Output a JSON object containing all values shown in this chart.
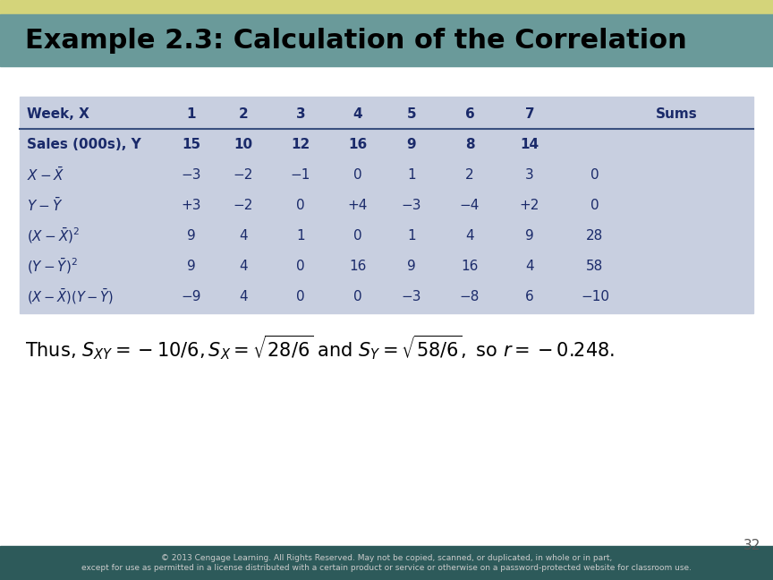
{
  "title": "Example 2.3: Calculation of the Correlation",
  "title_bg": "#6a9a9a",
  "title_stripe_bg": "#d4d47a",
  "title_color": "#000000",
  "title_fontsize": 22,
  "table_bg": "#c8cfe0",
  "table_border_color": "#3a5080",
  "main_bg": "#ffffff",
  "footer_bg": "#2d5a5a",
  "footer_text": "© 2013 Cengage Learning. All Rights Reserved. May not be copied, scanned, or duplicated, in whole or in part,\nexcept for use as permitted in a license distributed with a certain product or service or otherwise on a password-protected website for classroom use.",
  "page_number": "32",
  "table_data": [
    [
      "Week, X",
      "1",
      "2",
      "3",
      "4",
      "5",
      "6",
      "7",
      ""
    ],
    [
      "Sales (000s), Y",
      "15",
      "10",
      "12",
      "16",
      "9",
      "8",
      "14",
      ""
    ],
    [
      "X_bar",
      "−3",
      "−2",
      "−1",
      "0",
      "1",
      "2",
      "3",
      "0"
    ],
    [
      "Y_bar",
      "+3",
      "−2",
      "0",
      "+4",
      "−3",
      "−4",
      "+2",
      "0"
    ],
    [
      "X_bar_sq",
      "9",
      "4",
      "1",
      "0",
      "1",
      "4",
      "9",
      "28"
    ],
    [
      "Y_bar_sq",
      "9",
      "4",
      "0",
      "16",
      "9",
      "16",
      "4",
      "58"
    ],
    [
      "XY_bar",
      "−9",
      "4",
      "0",
      "0",
      "−3",
      "−8",
      "6",
      "−10"
    ]
  ],
  "label_color": "#1a2a6a",
  "data_color": "#1a2a6a"
}
